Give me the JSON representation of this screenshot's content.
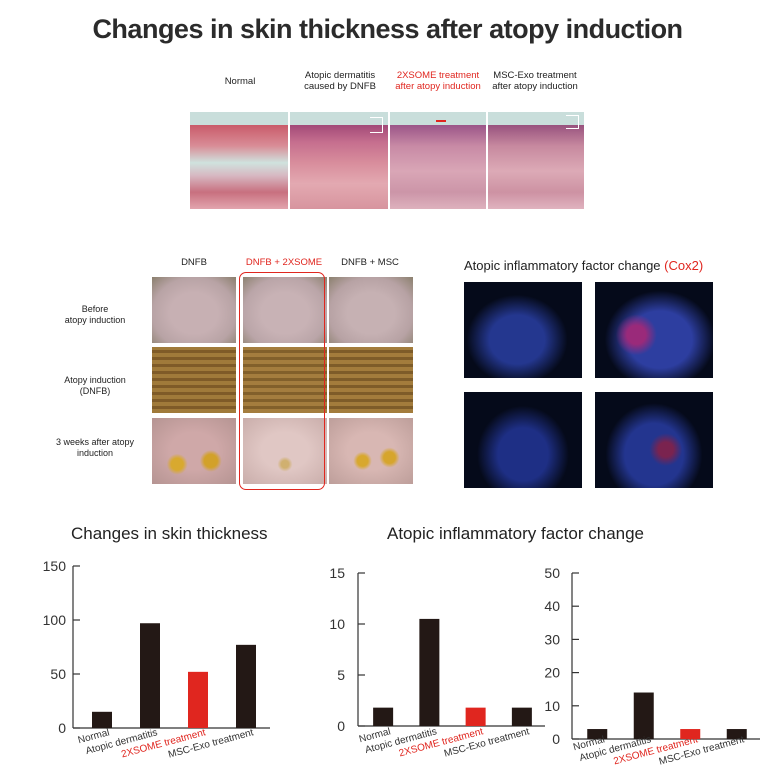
{
  "title": "Changes in skin thickness after atopy induction",
  "histology": {
    "labels": [
      {
        "line1": "Normal",
        "line2": "",
        "red": false
      },
      {
        "line1": "Atopic dermatitis",
        "line2": "caused by DNFB",
        "red": false
      },
      {
        "line1": "2XSOME treatment",
        "line2": "after atopy induction",
        "red": true
      },
      {
        "line1": "MSC-Exo treatment",
        "line2": "after atopy induction",
        "red": false
      }
    ]
  },
  "photos": {
    "columns": [
      "DNFB",
      "DNFB + 2XSOME",
      "DNFB + MSC"
    ],
    "rows": [
      {
        "line1": "Before",
        "line2": "atopy induction"
      },
      {
        "line1": "Atopy induction",
        "line2": "(DNFB)"
      },
      {
        "line1": "3 weeks after atopy",
        "line2": "induction"
      }
    ]
  },
  "inflammation_images": {
    "title": "Atopic inflammatory factor change",
    "title_highlight": "(Cox2)"
  },
  "colors": {
    "dark_bar": "#231815",
    "red_bar": "#e0261f",
    "highlight": "#e0261f"
  },
  "charts_section_titles": {
    "left": "Changes in skin thickness",
    "right": "Atopic inflammatory factor change"
  },
  "chart_data": [
    {
      "type": "bar",
      "categories": [
        "Normal",
        "Atopic dermatitis",
        "2XSOME treatment",
        "MSC-Exo treatment"
      ],
      "values": [
        15,
        97,
        52,
        77
      ],
      "highlight_index": 2,
      "ylim": [
        0,
        150
      ],
      "yticks": [
        0,
        50,
        100,
        150
      ],
      "title": "Changes in skin thickness"
    },
    {
      "type": "bar",
      "categories": [
        "Normal",
        "Atopic dermatitis",
        "2XSOME treatment",
        "MSC-Exo treatment"
      ],
      "values": [
        1.8,
        10.5,
        1.8,
        1.8
      ],
      "highlight_index": 2,
      "ylim": [
        0,
        15
      ],
      "yticks": [
        0,
        5,
        10,
        15
      ],
      "title": ""
    },
    {
      "type": "bar",
      "categories": [
        "Normal",
        "Atopic dermatitis",
        "2XSOME treatment",
        "MSC-Exo treatment"
      ],
      "values": [
        3,
        14,
        3,
        3
      ],
      "highlight_index": 2,
      "ylim": [
        0,
        50
      ],
      "yticks": [
        0,
        10,
        20,
        30,
        40,
        50
      ],
      "title": ""
    }
  ]
}
